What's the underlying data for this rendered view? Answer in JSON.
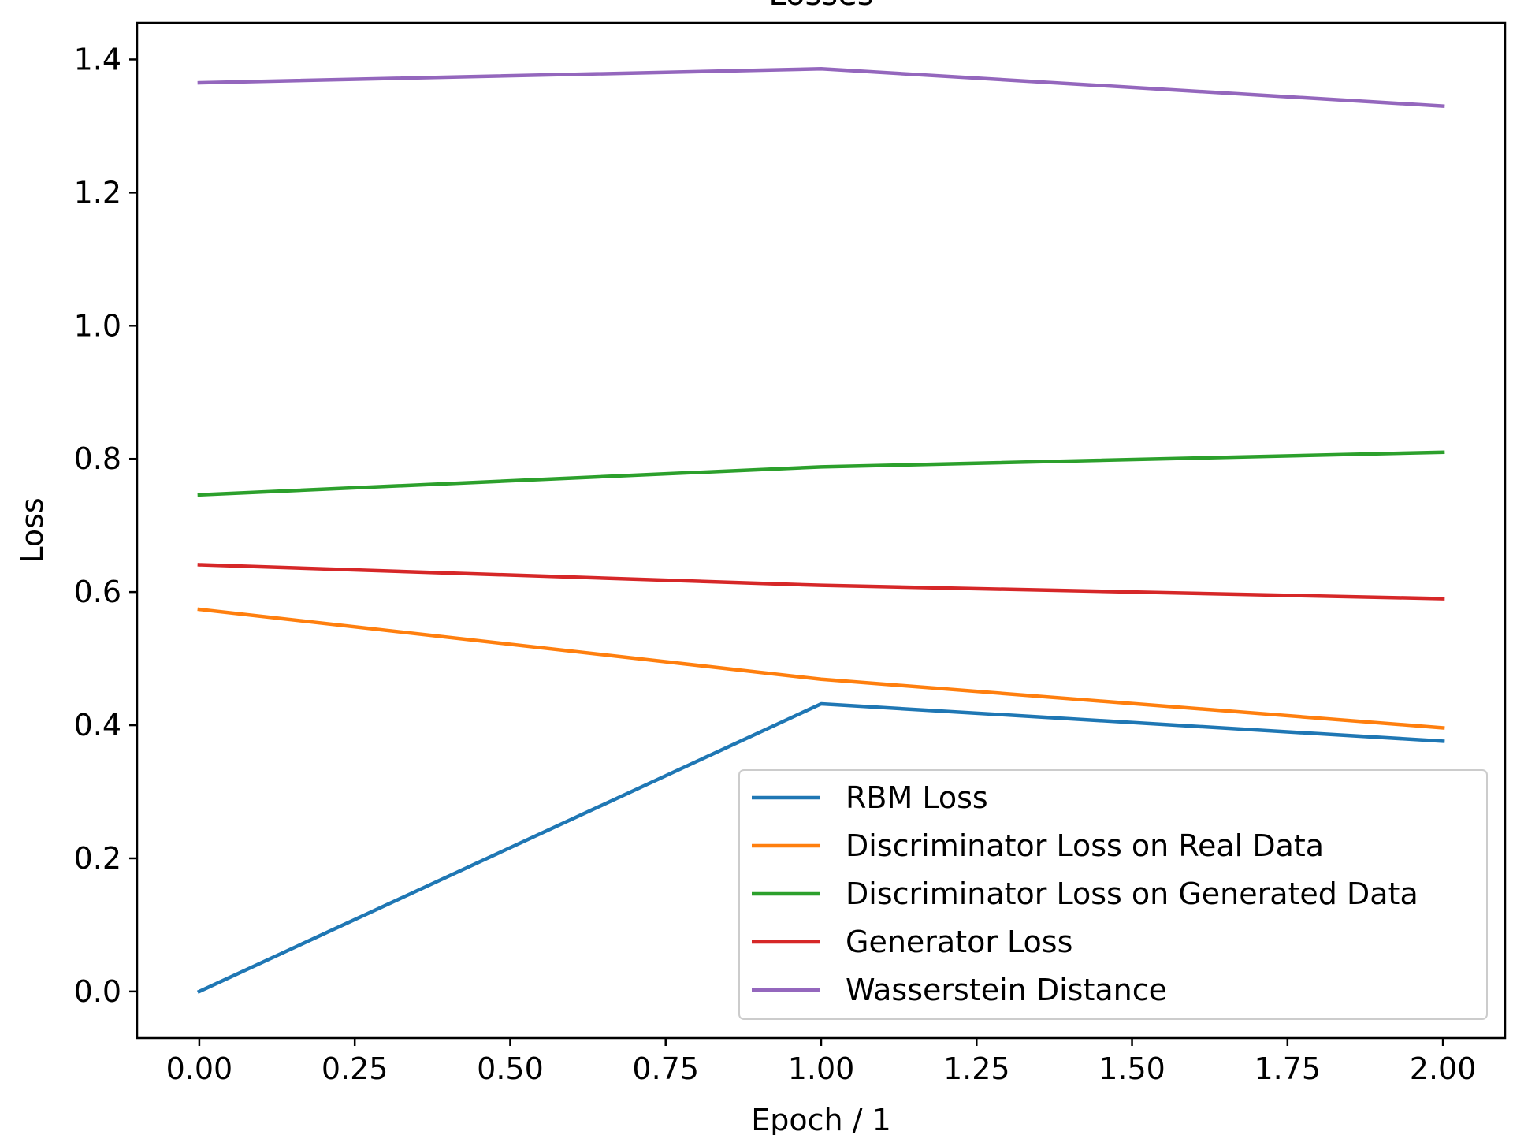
{
  "chart_data": {
    "type": "line",
    "title": "Losses",
    "xlabel": "Epoch / 1",
    "ylabel": "Loss",
    "x": [
      0,
      1,
      2
    ],
    "xlim": [
      -0.1,
      2.1
    ],
    "ylim": [
      -0.07,
      1.455
    ],
    "x_ticks": [
      0.0,
      0.25,
      0.5,
      0.75,
      1.0,
      1.25,
      1.5,
      1.75,
      2.0
    ],
    "x_tick_labels": [
      "0.00",
      "0.25",
      "0.50",
      "0.75",
      "1.00",
      "1.25",
      "1.50",
      "1.75",
      "2.00"
    ],
    "y_ticks": [
      0.0,
      0.2,
      0.4,
      0.6,
      0.8,
      1.0,
      1.2,
      1.4
    ],
    "y_tick_labels": [
      "0.0",
      "0.2",
      "0.4",
      "0.6",
      "0.8",
      "1.0",
      "1.2",
      "1.4"
    ],
    "grid": false,
    "legend_position": "lower-right",
    "series": [
      {
        "name": "RBM Loss",
        "color": "#1f77b4",
        "values": [
          0.0,
          0.432,
          0.376
        ]
      },
      {
        "name": "Discriminator Loss on Real Data",
        "color": "#ff7f0e",
        "values": [
          0.574,
          0.469,
          0.396
        ]
      },
      {
        "name": "Discriminator Loss on Generated Data",
        "color": "#2ca02c",
        "values": [
          0.746,
          0.788,
          0.81
        ]
      },
      {
        "name": "Generator Loss",
        "color": "#d62728",
        "values": [
          0.641,
          0.61,
          0.59
        ]
      },
      {
        "name": "Wasserstein Distance",
        "color": "#9467bd",
        "values": [
          1.365,
          1.386,
          1.33
        ]
      }
    ]
  }
}
